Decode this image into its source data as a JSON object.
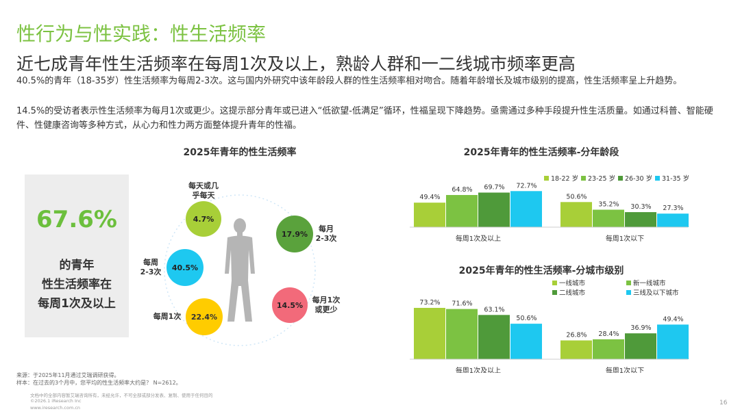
{
  "header": {
    "section_title": "性行为与性实践：性生活频率",
    "headline": "近七成青年性生活频率在每周1次及以上，熟龄人群和一二线城市频率更高"
  },
  "body": {
    "paragraph1": " 40.5%的青年（18-35岁）性生活频率为每周2-3次。这与国内外研究中该年龄段人群的性生活频率相对吻合。随着年龄增长及城市级别的提高，性生活频率呈上升趋势。",
    "paragraph2": "14.5%的受访者表示性生活频率为每月1次或更少。这提示部分青年或已进入“低欲望-低满足”循环，性福呈现下降趋势。亟需通过多种手段提升性生活质量。如通过科普、智能硬件、性健康咨询等多种方式，从心力和性力两方面整体提升青年的性福。"
  },
  "stat_card": {
    "value": "67.6%",
    "line1": "的青年",
    "line2": "性生活频率在",
    "line3": "每周1次及以上"
  },
  "footer": {
    "source": "来源：于2025年11月通过艾瑞调研获得。",
    "sample": "样本：在过去的3个月中，您平均的性生活频率大约是？ N=2612。",
    "disclaimer": "文档中的全部内容暂艾瑞咨询所有，未经允许，不可全部或部分发表、复制、使用于任何目的",
    "copyright": "©2026.1 iResearch Inc",
    "website": "www.iresearch.com.cn",
    "page_number": "16"
  },
  "chart_data": [
    {
      "type": "bubble",
      "title": "2025年青年的性生活频率",
      "items": [
        {
          "label": [
            "每天或几",
            "乎每天"
          ],
          "value": 4.7,
          "display": "4.7%",
          "color": "#a8cf38"
        },
        {
          "label": [
            "每月",
            "2-3次"
          ],
          "value": 17.9,
          "display": "17.9%",
          "color": "#5aa23c"
        },
        {
          "label": [
            "每月1次",
            "或更少"
          ],
          "value": 14.5,
          "display": "14.5%",
          "color": "#f26a7a"
        },
        {
          "label": [
            "每周1次"
          ],
          "value": 22.4,
          "display": "22.4%",
          "color": "#ffcc00"
        },
        {
          "label": [
            "每周",
            "2-3次"
          ],
          "value": 40.5,
          "display": "40.5%",
          "color": "#1ec8f0"
        }
      ]
    },
    {
      "type": "bar",
      "title": "2025年青年的性生活频率-分年龄段",
      "categories": [
        "每周1次及以上",
        "每周1次以下"
      ],
      "series": [
        {
          "name": "18-22 岁",
          "color": "#a8cf38",
          "values": [
            49.4,
            50.6
          ]
        },
        {
          "name": "23-25 岁",
          "color": "#7cc242",
          "values": [
            64.8,
            35.2
          ]
        },
        {
          "name": "26-30 岁",
          "color": "#4f9a3a",
          "values": [
            69.7,
            30.3
          ]
        },
        {
          "name": "31-35 岁",
          "color": "#1ec8f0",
          "values": [
            72.7,
            27.3
          ]
        }
      ],
      "ylim": [
        0,
        80
      ]
    },
    {
      "type": "bar",
      "title": "2025年青年的性生活频率-分城市级别",
      "categories": [
        "每周1次及以上",
        "每周1次以下"
      ],
      "series": [
        {
          "name": "一线城市",
          "color": "#a8cf38",
          "values": [
            73.2,
            26.8
          ]
        },
        {
          "name": "新一线城市",
          "color": "#7cc242",
          "values": [
            71.6,
            28.4
          ]
        },
        {
          "name": "二线城市",
          "color": "#4f9a3a",
          "values": [
            63.1,
            36.9
          ]
        },
        {
          "name": "三线及以下城市",
          "color": "#1ec8f0",
          "values": [
            50.6,
            49.4
          ]
        }
      ],
      "ylim": [
        0,
        80
      ]
    }
  ]
}
